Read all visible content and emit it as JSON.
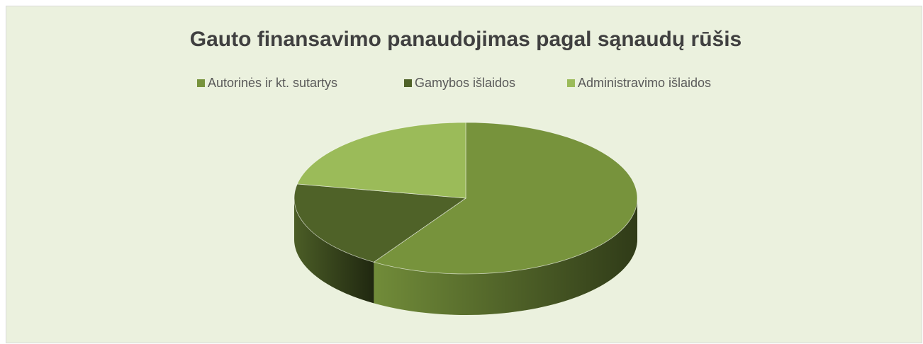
{
  "chart_data": {
    "type": "pie3d",
    "title": "Gauto finansavimo panaudojimas pagal sąnaudų rūšis",
    "categories": [
      "Autorinės ir kt. sutartys",
      "Gamybos išlaidos",
      "Administravimo išlaidos"
    ],
    "values": [
      59,
      19,
      22
    ],
    "colors": [
      "#77933c",
      "#4f6228",
      "#9bbb59"
    ],
    "legend": "top"
  }
}
